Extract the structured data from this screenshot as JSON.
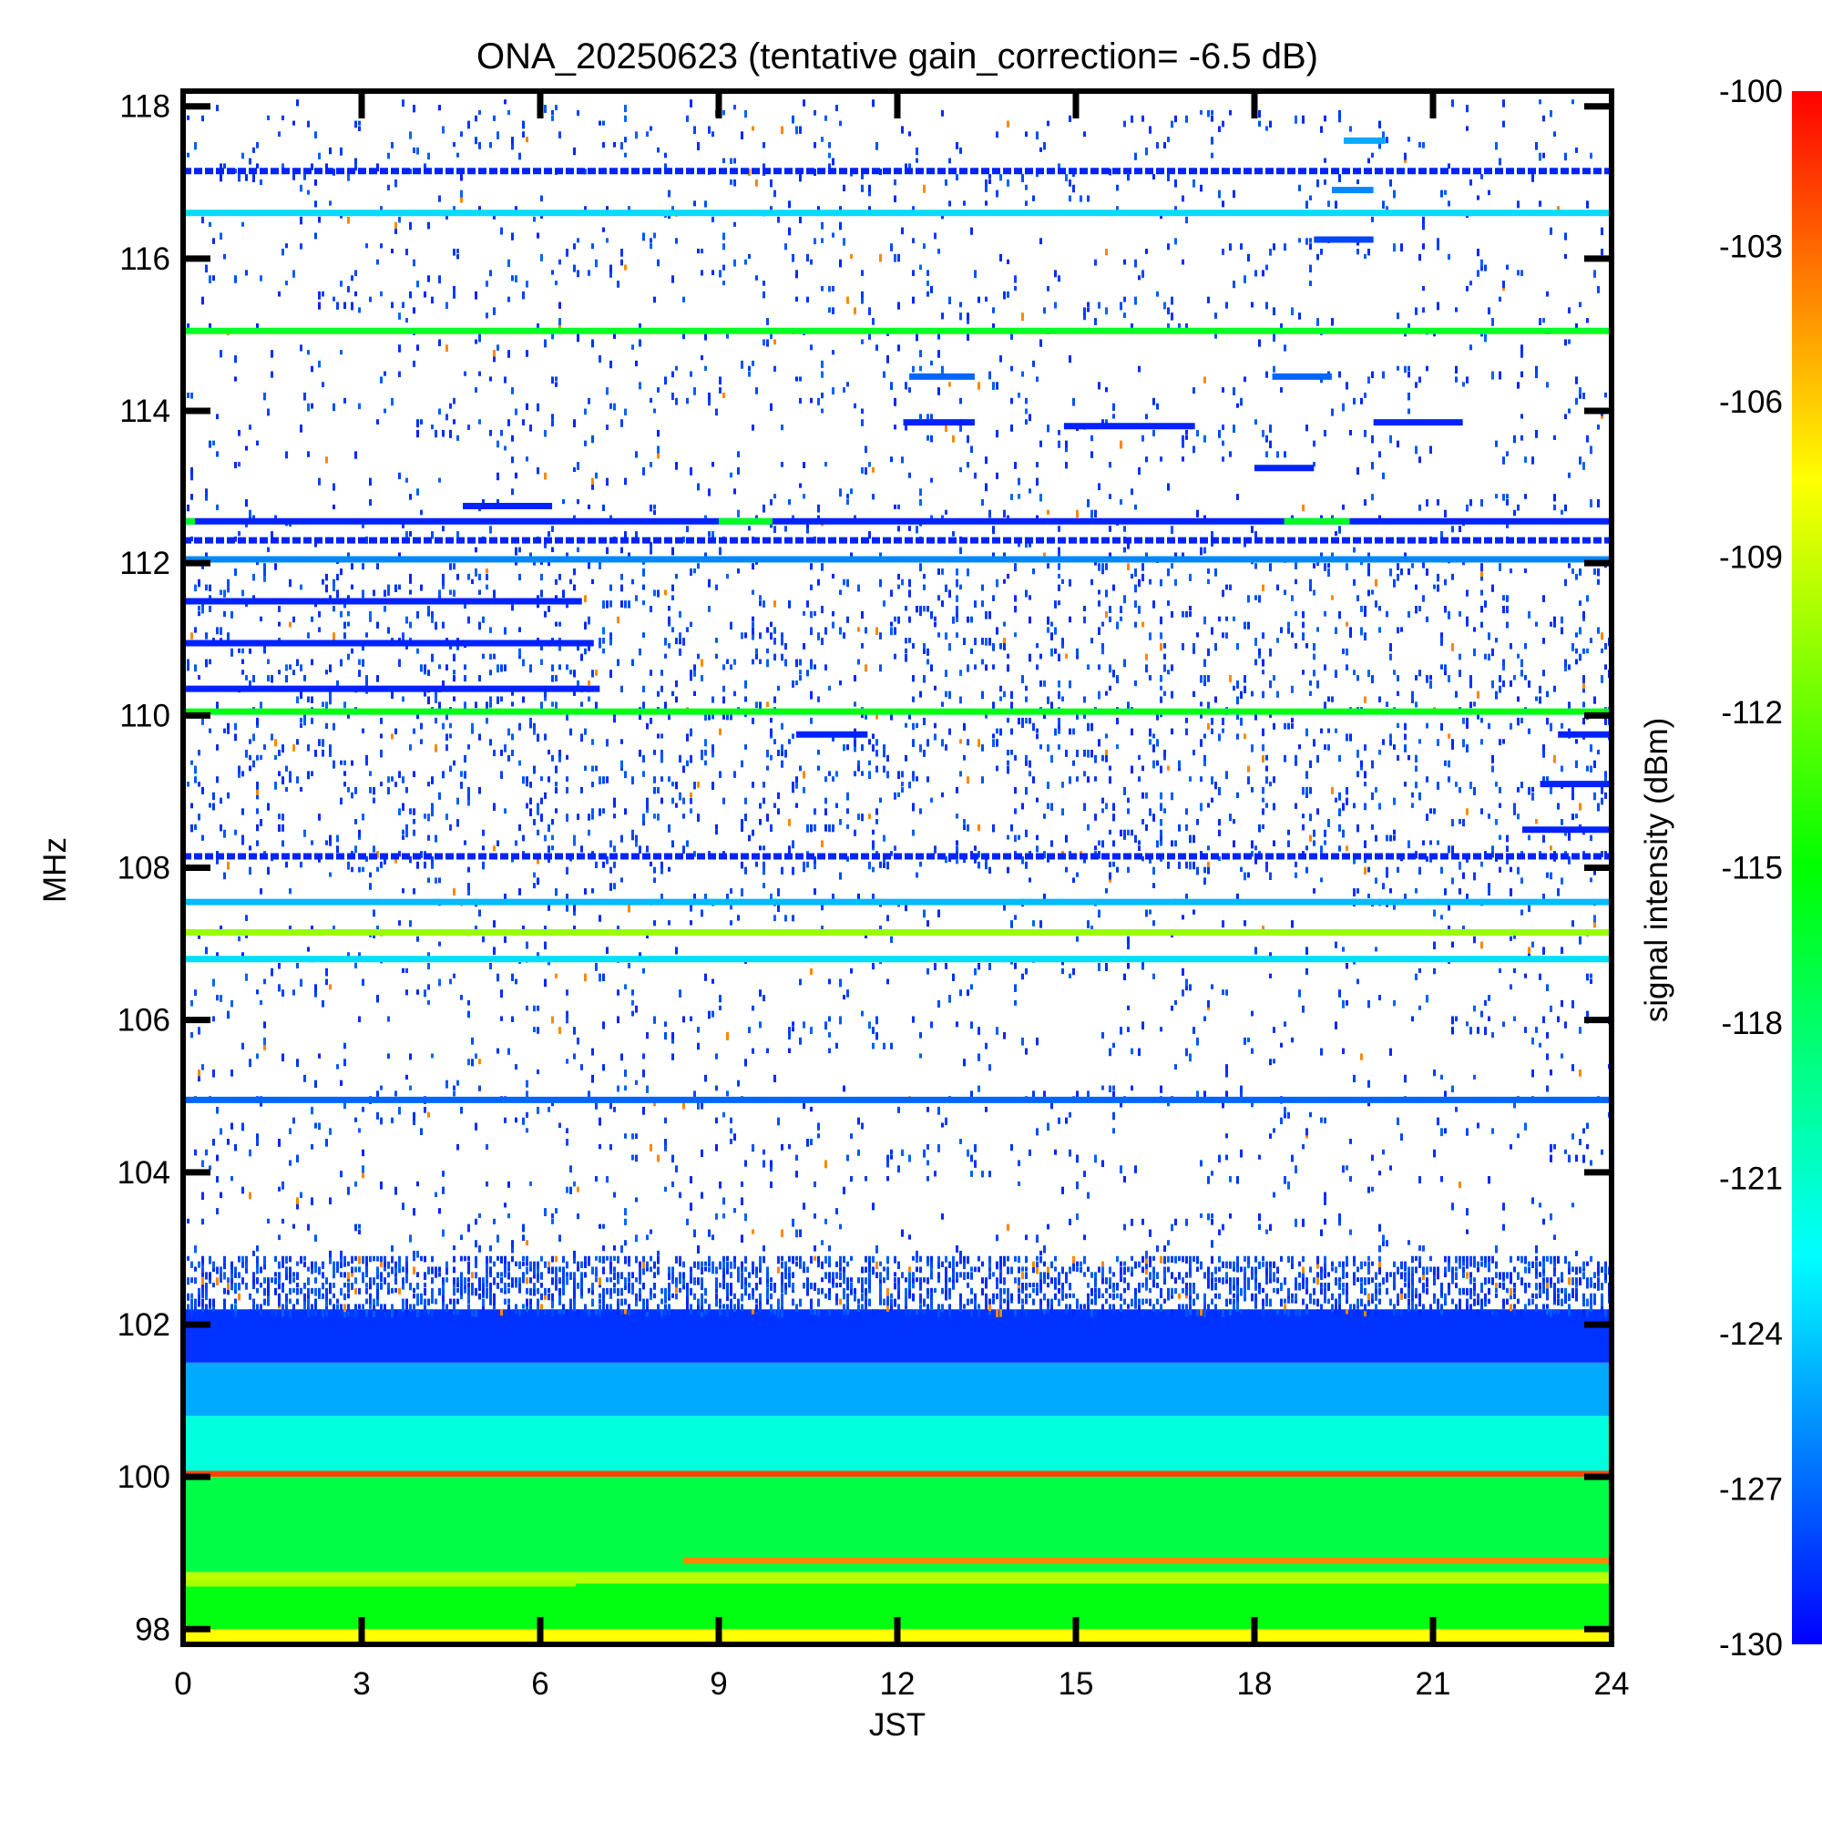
{
  "chart_data": {
    "type": "heatmap",
    "title": "ONA_20250623 (tentative gain_correction= -6.5 dB)",
    "xlabel": "JST",
    "ylabel": "MHz",
    "colorbar_label": "signal intensity (dBm)",
    "xlim": [
      0,
      24
    ],
    "ylim": [
      97.8,
      118.2
    ],
    "x_ticks": [
      0,
      3,
      6,
      9,
      12,
      15,
      18,
      21,
      24
    ],
    "x_tick_labels": [
      "0",
      "3",
      "6",
      "9",
      "12",
      "15",
      "18",
      "21",
      "24"
    ],
    "y_ticks": [
      98,
      100,
      102,
      104,
      106,
      108,
      110,
      112,
      114,
      116,
      118
    ],
    "y_tick_labels": [
      "98",
      "100",
      "102",
      "104",
      "106",
      "108",
      "110",
      "112",
      "114",
      "116",
      "118"
    ],
    "colorbar_range": [
      -130,
      -100
    ],
    "colorbar_ticks": [
      -100,
      -103,
      -106,
      -109,
      -112,
      -115,
      -118,
      -121,
      -124,
      -127,
      -130
    ],
    "colorbar_tick_labels": [
      "-100",
      "-103",
      "-106",
      "-109",
      "-112",
      "-115",
      "-118",
      "-121",
      "-124",
      "-127",
      "-130"
    ],
    "colormap": [
      "#0000ff",
      "#0080ff",
      "#00ffff",
      "#00ff80",
      "#00ff00",
      "#80ff00",
      "#ffff00",
      "#ff8000",
      "#ff0000"
    ],
    "bands": [
      {
        "from_mhz": 97.8,
        "to_mhz": 98.0,
        "dbm": -107.5
      },
      {
        "from_mhz": 98.0,
        "to_mhz": 98.6,
        "dbm": -115.5
      },
      {
        "from_mhz": 98.6,
        "to_mhz": 98.75,
        "dbm": -109.5
      },
      {
        "from_mhz": 98.75,
        "to_mhz": 100.0,
        "dbm": -117.0
      },
      {
        "from_mhz": 100.0,
        "to_mhz": 100.08,
        "dbm": -102.0
      },
      {
        "from_mhz": 100.08,
        "to_mhz": 100.8,
        "dbm": -121.5
      },
      {
        "from_mhz": 100.8,
        "to_mhz": 101.5,
        "dbm": -125.0
      },
      {
        "from_mhz": 101.5,
        "to_mhz": 102.2,
        "dbm": -128.5
      }
    ],
    "lines": [
      {
        "mhz": 104.95,
        "dbm": -127,
        "pattern": "continuous"
      },
      {
        "mhz": 106.8,
        "dbm": -123.5,
        "pattern": "continuous"
      },
      {
        "mhz": 107.15,
        "dbm": -110.5,
        "pattern": "continuous"
      },
      {
        "mhz": 107.55,
        "dbm": -124.5,
        "pattern": "continuous"
      },
      {
        "mhz": 108.15,
        "dbm": -129,
        "pattern": "dashed"
      },
      {
        "mhz": 110.05,
        "dbm": -115.5,
        "pattern": "continuous"
      },
      {
        "mhz": 112.05,
        "dbm": -126,
        "pattern": "continuous"
      },
      {
        "mhz": 112.3,
        "dbm": -129,
        "pattern": "dashed"
      },
      {
        "mhz": 112.55,
        "dbm": -129,
        "pattern": "continuous"
      },
      {
        "mhz": 115.05,
        "dbm": -116,
        "pattern": "continuous"
      },
      {
        "mhz": 116.6,
        "dbm": -123.5,
        "pattern": "continuous"
      },
      {
        "mhz": 117.15,
        "dbm": -129,
        "pattern": "dashed"
      }
    ],
    "segments": [
      {
        "mhz": 112.55,
        "from_h": 0.0,
        "to_h": 0.2,
        "dbm": -116
      },
      {
        "mhz": 112.55,
        "from_h": 9.0,
        "to_h": 9.9,
        "dbm": -116
      },
      {
        "mhz": 112.55,
        "from_h": 18.5,
        "to_h": 19.6,
        "dbm": -116
      },
      {
        "mhz": 111.5,
        "from_h": 0.0,
        "to_h": 6.7,
        "dbm": -129
      },
      {
        "mhz": 110.95,
        "from_h": 0.0,
        "to_h": 6.9,
        "dbm": -129
      },
      {
        "mhz": 110.35,
        "from_h": 0.0,
        "to_h": 7.0,
        "dbm": -129
      },
      {
        "mhz": 113.85,
        "from_h": 12.1,
        "to_h": 13.3,
        "dbm": -129
      },
      {
        "mhz": 113.8,
        "from_h": 14.8,
        "to_h": 17.0,
        "dbm": -129
      },
      {
        "mhz": 113.85,
        "from_h": 20.0,
        "to_h": 21.5,
        "dbm": -129
      },
      {
        "mhz": 114.45,
        "from_h": 12.2,
        "to_h": 13.3,
        "dbm": -127
      },
      {
        "mhz": 114.45,
        "from_h": 18.3,
        "to_h": 19.3,
        "dbm": -127
      },
      {
        "mhz": 113.25,
        "from_h": 18.0,
        "to_h": 19.0,
        "dbm": -129
      },
      {
        "mhz": 116.25,
        "from_h": 19.0,
        "to_h": 20.0,
        "dbm": -128
      },
      {
        "mhz": 116.9,
        "from_h": 19.3,
        "to_h": 20.0,
        "dbm": -126
      },
      {
        "mhz": 117.55,
        "from_h": 19.5,
        "to_h": 20.2,
        "dbm": -125
      },
      {
        "mhz": 109.75,
        "from_h": 10.3,
        "to_h": 11.5,
        "dbm": -129
      },
      {
        "mhz": 108.5,
        "from_h": 22.5,
        "to_h": 24.0,
        "dbm": -129
      },
      {
        "mhz": 109.1,
        "from_h": 22.8,
        "to_h": 24.0,
        "dbm": -129
      },
      {
        "mhz": 109.75,
        "from_h": 23.1,
        "to_h": 24.0,
        "dbm": -129
      },
      {
        "mhz": 112.75,
        "from_h": 4.7,
        "to_h": 6.2,
        "dbm": -129
      },
      {
        "mhz": 98.6,
        "from_h": 0.0,
        "to_h": 6.6,
        "dbm": -110
      },
      {
        "mhz": 98.9,
        "from_h": 8.4,
        "to_h": 24.0,
        "dbm": -104
      }
    ]
  }
}
